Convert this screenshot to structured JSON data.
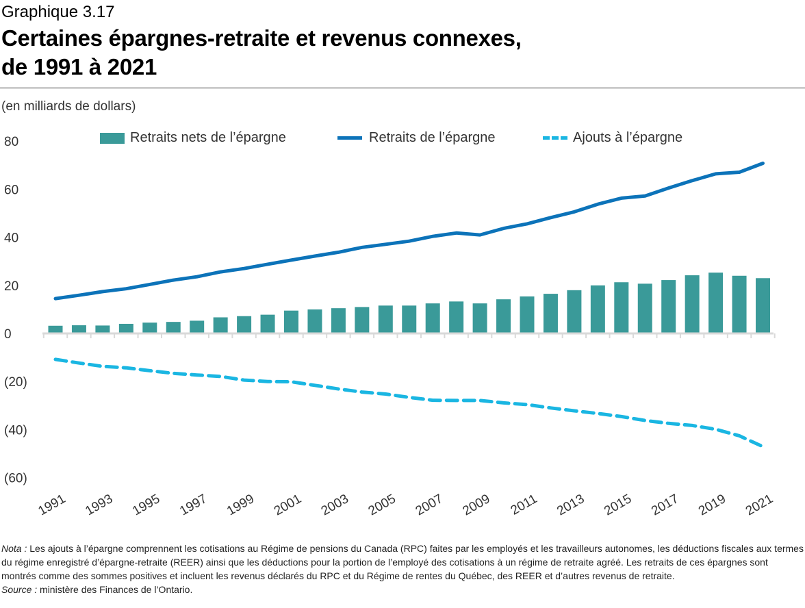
{
  "header": {
    "label": "Graphique 3.17",
    "title_line1": "Certaines épargnes-retraite et revenus connexes,",
    "title_line2": "de 1991 à 2021",
    "units": "(en milliards de dollars)"
  },
  "legend": {
    "bars": "Retraits nets de l’épargne",
    "line": "Retraits de l’épargne",
    "dashed": "Ajouts à l’épargne"
  },
  "colors": {
    "bars": "#3a9a99",
    "line": "#0c73b9",
    "dashed": "#1ab6e2",
    "axis": "#d9d9d9"
  },
  "chart_data": {
    "type": "bar",
    "title": "Certaines épargnes-retraite et revenus connexes, de 1991 à 2021",
    "ylabel": "(en milliards de dollars)",
    "xlabel": "",
    "ylim": [
      -60,
      80
    ],
    "yticks": [
      80,
      60,
      40,
      20,
      0,
      -20,
      -40,
      -60
    ],
    "ytick_labels": [
      "80",
      "60",
      "40",
      "20",
      "0",
      "(20)",
      "(40)",
      "(60)"
    ],
    "categories": [
      1991,
      1992,
      1993,
      1994,
      1995,
      1996,
      1997,
      1998,
      1999,
      2000,
      2001,
      2002,
      2003,
      2004,
      2005,
      2006,
      2007,
      2008,
      2009,
      2010,
      2011,
      2012,
      2013,
      2014,
      2015,
      2016,
      2017,
      2018,
      2019,
      2020,
      2021
    ],
    "xtick_labels": [
      "1991",
      "1993",
      "1995",
      "1997",
      "1999",
      "2001",
      "2003",
      "2005",
      "2007",
      "2009",
      "2011",
      "2013",
      "2015",
      "2017",
      "2019",
      "2021"
    ],
    "series": [
      {
        "name": "Retraits nets de l’épargne",
        "kind": "bar",
        "values": [
          3.2,
          3.4,
          3.3,
          4.0,
          4.5,
          4.8,
          5.3,
          6.7,
          7.2,
          7.8,
          9.5,
          10.0,
          10.5,
          11.0,
          11.6,
          11.6,
          12.5,
          13.3,
          12.5,
          14.2,
          15.4,
          16.5,
          18.0,
          20.0,
          21.3,
          20.7,
          22.2,
          24.2,
          25.3,
          24.0,
          23.0
        ]
      },
      {
        "name": "Retraits de l’épargne",
        "kind": "line",
        "values": [
          14.5,
          15.9,
          17.4,
          18.6,
          20.4,
          22.2,
          23.6,
          25.6,
          27.0,
          28.8,
          30.5,
          32.2,
          33.8,
          35.8,
          37.1,
          38.4,
          40.4,
          41.8,
          41.0,
          43.7,
          45.6,
          48.2,
          50.6,
          53.8,
          56.3,
          57.2,
          60.5,
          63.6,
          66.4,
          67.1,
          70.8
        ]
      },
      {
        "name": "Ajouts à l’épargne",
        "kind": "dashed-line",
        "values": [
          -10.8,
          -12.3,
          -13.7,
          -14.3,
          -15.5,
          -16.6,
          -17.3,
          -17.9,
          -19.4,
          -20.0,
          -20.1,
          -21.6,
          -23.1,
          -24.4,
          -25.2,
          -26.6,
          -27.8,
          -27.9,
          -27.9,
          -28.9,
          -29.6,
          -31.0,
          -32.2,
          -33.3,
          -34.6,
          -36.2,
          -37.4,
          -38.3,
          -39.9,
          -42.6,
          -47.1
        ]
      }
    ]
  },
  "notes": {
    "nota_label": "Nota :",
    "nota_text": " Les ajouts à l’épargne comprennent les cotisations au Régime de pensions du Canada (RPC) faites par les employés et les travailleurs autonomes, les déductions fiscales aux termes du régime enregistré d’épargne-retraite (REER) ainsi que les déductions pour la portion de l’employé des cotisations à un régime de retraite agréé. Les retraits de ces épargnes sont montrés comme des sommes positives et incluent les revenus déclarés du RPC et du Régime de rentes du Québec, des REER et d’autres revenus de retraite.",
    "source_label": "Source :",
    "source_text": " ministère des Finances de l’Ontario."
  }
}
